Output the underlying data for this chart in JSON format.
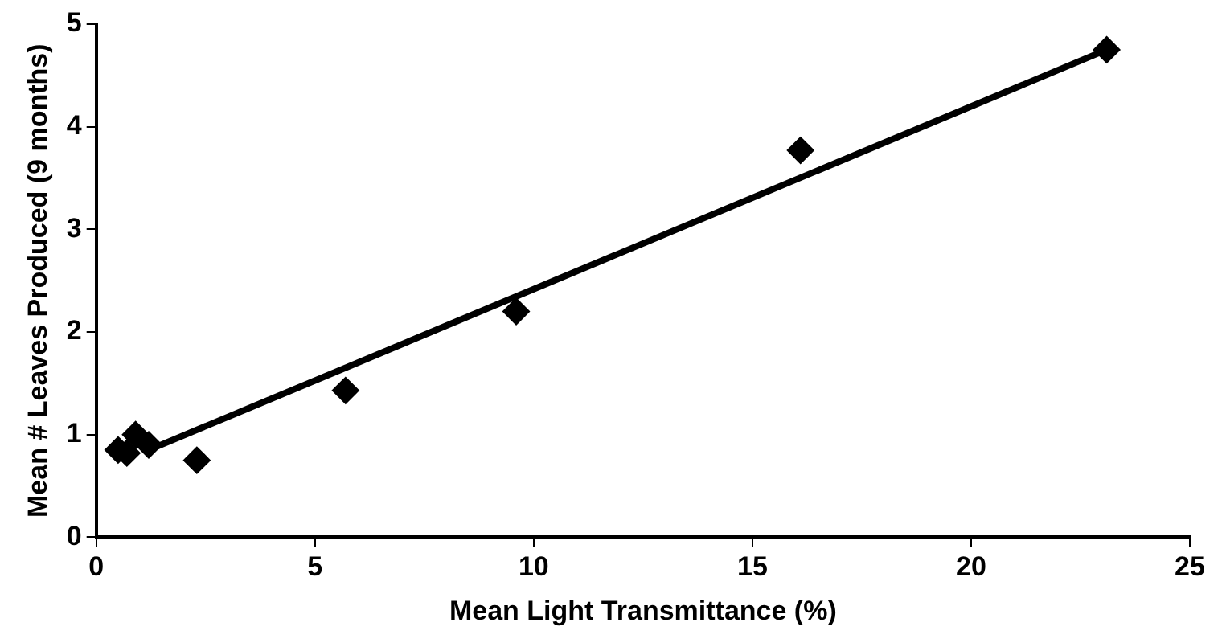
{
  "chart_data": {
    "type": "scatter",
    "xlabel": "Mean Light Transmittance (%)",
    "ylabel": "Mean # Leaves Produced (9 months)",
    "marker": "diamond",
    "grid": false,
    "legend": false,
    "xlim": [
      0,
      25
    ],
    "xticks": [
      0,
      5,
      10,
      15,
      20,
      25
    ],
    "ylim": [
      0,
      5
    ],
    "yticks": [
      0,
      1,
      2,
      3,
      4,
      5
    ],
    "series": [
      {
        "color": "#000000",
        "x": [
          0.5,
          0.7,
          0.9,
          1.2,
          2.3,
          5.7,
          9.6,
          16.1,
          23.1
        ],
        "values": [
          0.85,
          0.82,
          1.0,
          0.9,
          0.75,
          1.43,
          2.2,
          3.77,
          4.75
        ]
      },
      {
        "type": "line",
        "marker": "none",
        "color": "#000000",
        "x": [
          1.2,
          23.1
        ],
        "values": [
          0.85,
          4.75
        ]
      }
    ]
  }
}
